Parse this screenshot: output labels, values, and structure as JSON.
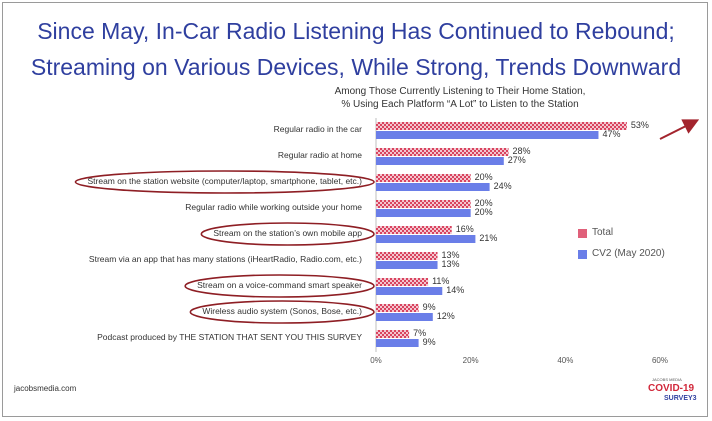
{
  "title_line1": "Since May, In-Car Radio Listening Has Continued to Rebound;",
  "title_line2": "Streaming on Various Devices, While Strong, Trends Downward",
  "subtitle_line1": "Among Those Currently Listening to Their Home Station,",
  "subtitle_line2": "% Using Each Platform “A Lot” to Listen to the Station",
  "footer": "jacobsmedia.com",
  "logo": {
    "top": "JACOBS MEDIA",
    "main": "COVID-19",
    "sub": "SURVEY3"
  },
  "colors": {
    "total": "#e0607a",
    "cv2": "#6a7ee8",
    "circle": "#8e1e24",
    "title": "#2f3f9f",
    "arrow": "#a3242d"
  },
  "chart_data": {
    "type": "bar",
    "orientation": "horizontal",
    "categories": [
      "Regular radio in the car",
      "Regular radio at home",
      "Stream on the station website (computer/laptop, smartphone, tablet, etc.)",
      "Regular radio while working outside your home",
      "Stream on the station’s own mobile app",
      "Stream via an app that has many stations (iHeartRadio, Radio.com, etc.)",
      "Stream on a voice-command smart speaker",
      "Wireless audio system (Sonos, Bose, etc.)",
      "Podcast produced by THE STATION THAT SENT YOU THIS SURVEY"
    ],
    "series": [
      {
        "name": "Total",
        "values": [
          53,
          28,
          20,
          20,
          16,
          13,
          11,
          9,
          7
        ],
        "pattern": "checkered"
      },
      {
        "name": "CV2 (May 2020)",
        "values": [
          47,
          27,
          24,
          20,
          21,
          13,
          14,
          12,
          9
        ],
        "pattern": "solid"
      }
    ],
    "value_suffix": "%",
    "xlim": [
      0,
      60
    ],
    "xticks": [
      "0%",
      "20%",
      "40%",
      "60%"
    ],
    "circled_categories": [
      2,
      4,
      6,
      7
    ],
    "arrow_on_category": 0,
    "legend_position": "right"
  }
}
